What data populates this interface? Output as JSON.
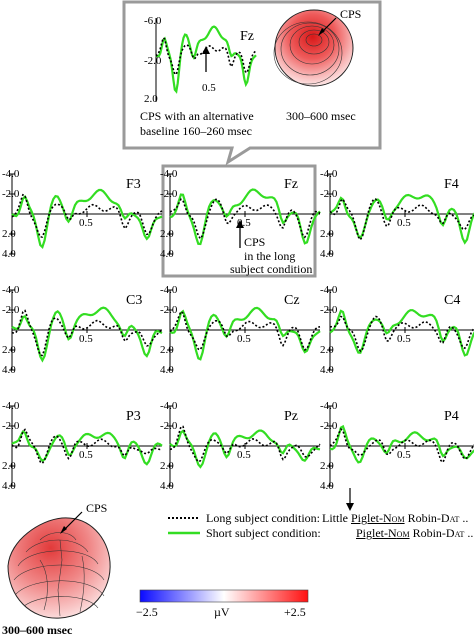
{
  "inset": {
    "electrode": "Fz",
    "yticks": [
      "-6.0",
      "-2.0",
      "2.0"
    ],
    "xtick": "0.5",
    "caption_line1": "CPS with an alternative",
    "caption_line2": "baseline 160–260 msec",
    "map_label": "CPS",
    "map_time": "300–600 msec"
  },
  "grid": {
    "yticks": [
      "-4.0",
      "-2.0",
      "2.0",
      "4.0"
    ],
    "xtick": "0.5",
    "panels": [
      {
        "id": "F3",
        "label": "F3"
      },
      {
        "id": "Fz",
        "label": "Fz"
      },
      {
        "id": "F4",
        "label": "F4"
      },
      {
        "id": "C3",
        "label": "C3"
      },
      {
        "id": "Cz",
        "label": "Cz"
      },
      {
        "id": "C4",
        "label": "C4"
      },
      {
        "id": "P3",
        "label": "P3"
      },
      {
        "id": "Pz",
        "label": "Pz"
      },
      {
        "id": "P4",
        "label": "P4"
      }
    ],
    "fz_note_line1": "CPS",
    "fz_note_line2": "in the long",
    "fz_note_line3": "subject condition"
  },
  "legend": {
    "long_label": "Long subject condition:",
    "short_label": "Short subject condition:",
    "long_color": "#000000",
    "short_color": "#33dd22",
    "ex1_a": "Little ",
    "ex1_b": "Piglet-N",
    "ex1_c": "om",
    "ex1_d": " Robin-D",
    "ex1_e": "at",
    "ex1_f": " ..",
    "ex2_b": "Piglet-N",
    "ex2_c": "om",
    "ex2_d": " Robin-D",
    "ex2_e": "at",
    "ex2_f": " ..",
    "arrow_label": ""
  },
  "bottom_map": {
    "label": "CPS",
    "time": "300–600 msec"
  },
  "colorbar": {
    "min_label": "−2.5",
    "unit": "µV",
    "max_label": "+2.5",
    "colors": [
      "#0000ff",
      "#ffffff",
      "#ff0000"
    ]
  }
}
